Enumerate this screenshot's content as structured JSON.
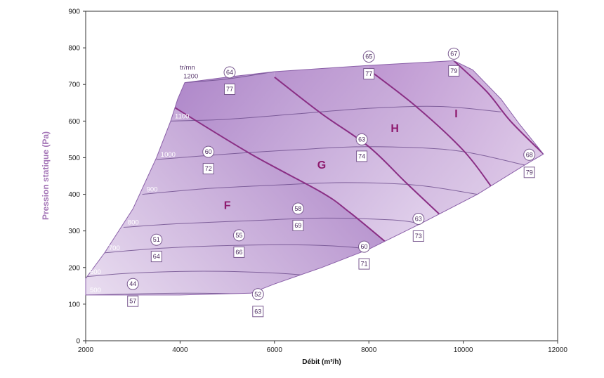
{
  "chart_data": {
    "type": "area",
    "xlabel": "Débit (m³/h)",
    "ylabel": "Pression statique (Pa)",
    "xlim": [
      2000,
      12000
    ],
    "ylim": [
      0,
      900
    ],
    "xticks": [
      "2000",
      "4000",
      "6000",
      "8000",
      "10000",
      "12000"
    ],
    "yticks": [
      "0",
      "100",
      "200",
      "300",
      "400",
      "500",
      "600",
      "700",
      "800",
      "900"
    ],
    "colors": {
      "axis_label": "#a272b5",
      "region_dark": "#9c6cbc",
      "region_light": "#f3ecf7",
      "curve": "#8a2f85",
      "isoline": "#6a4a8a"
    },
    "speed_unit": "tr/mn",
    "envelope": [
      [
        2000,
        170
      ],
      [
        2400,
        240
      ],
      [
        3000,
        360
      ],
      [
        3500,
        500
      ],
      [
        3800,
        600
      ],
      [
        3950,
        660
      ],
      [
        4100,
        705
      ],
      [
        5000,
        720
      ],
      [
        6000,
        735
      ],
      [
        8000,
        752
      ],
      [
        9800,
        765
      ],
      [
        10200,
        740
      ],
      [
        10800,
        660
      ],
      [
        11200,
        590
      ],
      [
        11700,
        510
      ],
      [
        11300,
        480
      ],
      [
        10300,
        400
      ],
      [
        9100,
        320
      ],
      [
        8000,
        250
      ],
      [
        7000,
        200
      ],
      [
        6000,
        155
      ],
      [
        5500,
        130
      ],
      [
        4000,
        125
      ],
      [
        2000,
        125
      ],
      [
        2000,
        170
      ]
    ],
    "speed_curves": [
      {
        "label": "500",
        "points": [
          [
            2000,
            125
          ],
          [
            4000,
            130
          ],
          [
            5500,
            128
          ]
        ]
      },
      {
        "label": "600",
        "points": [
          [
            2000,
            175
          ],
          [
            3000,
            185
          ],
          [
            4500,
            190
          ],
          [
            6000,
            185
          ],
          [
            7000,
            175
          ]
        ]
      },
      {
        "label": "700",
        "points": [
          [
            2400,
            240
          ],
          [
            3500,
            252
          ],
          [
            5000,
            260
          ],
          [
            6500,
            262
          ],
          [
            7500,
            257
          ],
          [
            8000,
            250
          ]
        ]
      },
      {
        "label": "800",
        "points": [
          [
            2800,
            310
          ],
          [
            4000,
            320
          ],
          [
            5500,
            328
          ],
          [
            7000,
            335
          ],
          [
            8500,
            330
          ],
          [
            9100,
            320
          ]
        ]
      },
      {
        "label": "900",
        "points": [
          [
            3200,
            400
          ],
          [
            4500,
            415
          ],
          [
            6000,
            425
          ],
          [
            7500,
            432
          ],
          [
            9000,
            425
          ],
          [
            10300,
            400
          ]
        ]
      },
      {
        "label": "1000",
        "points": [
          [
            3500,
            495
          ],
          [
            5000,
            510
          ],
          [
            6500,
            522
          ],
          [
            8000,
            530
          ],
          [
            9800,
            520
          ],
          [
            11300,
            480
          ]
        ]
      },
      {
        "label": "1100",
        "points": [
          [
            3800,
            600
          ],
          [
            5000,
            605
          ],
          [
            6500,
            620
          ],
          [
            8000,
            635
          ],
          [
            9500,
            640
          ],
          [
            10800,
            625
          ]
        ]
      },
      {
        "label": "1200",
        "points": [
          [
            4100,
            705
          ],
          [
            5000,
            715
          ],
          [
            6000,
            735
          ]
        ]
      }
    ],
    "zone_boundaries": [
      {
        "points": [
          [
            3850,
            640
          ],
          [
            5500,
            510
          ],
          [
            7000,
            405
          ],
          [
            7600,
            350
          ],
          [
            8400,
            265
          ]
        ]
      },
      {
        "points": [
          [
            6000,
            720
          ],
          [
            7000,
            620
          ],
          [
            8000,
            530
          ],
          [
            8800,
            430
          ],
          [
            9500,
            345
          ]
        ]
      },
      {
        "points": [
          [
            8000,
            740
          ],
          [
            9000,
            640
          ],
          [
            10000,
            520
          ],
          [
            10600,
            420
          ]
        ]
      },
      {
        "points": [
          [
            9800,
            765
          ],
          [
            10500,
            680
          ],
          [
            11000,
            600
          ],
          [
            11700,
            510
          ]
        ]
      }
    ],
    "zones": [
      {
        "label": "F",
        "x": 5000,
        "y": 360
      },
      {
        "label": "G",
        "x": 7000,
        "y": 470
      },
      {
        "label": "H",
        "x": 8550,
        "y": 570
      },
      {
        "label": "I",
        "x": 9850,
        "y": 610
      }
    ],
    "circle_markers": [
      {
        "label": "64",
        "x": 5050,
        "y": 733
      },
      {
        "label": "65",
        "x": 8000,
        "y": 776
      },
      {
        "label": "67",
        "x": 9800,
        "y": 784
      },
      {
        "label": "63",
        "x": 7850,
        "y": 550
      },
      {
        "label": "60",
        "x": 4600,
        "y": 516
      },
      {
        "label": "68",
        "x": 11400,
        "y": 508
      },
      {
        "label": "58",
        "x": 6500,
        "y": 361
      },
      {
        "label": "63",
        "x": 9050,
        "y": 333
      },
      {
        "label": "51",
        "x": 3500,
        "y": 276
      },
      {
        "label": "55",
        "x": 5250,
        "y": 288
      },
      {
        "label": "60",
        "x": 7900,
        "y": 257
      },
      {
        "label": "44",
        "x": 3000,
        "y": 155
      },
      {
        "label": "52",
        "x": 5650,
        "y": 127
      }
    ],
    "square_markers": [
      {
        "label": "77",
        "x": 5050,
        "y": 687
      },
      {
        "label": "77",
        "x": 8000,
        "y": 729
      },
      {
        "label": "79",
        "x": 9800,
        "y": 737
      },
      {
        "label": "74",
        "x": 7850,
        "y": 504
      },
      {
        "label": "72",
        "x": 4600,
        "y": 470
      },
      {
        "label": "79",
        "x": 11400,
        "y": 460
      },
      {
        "label": "69",
        "x": 6500,
        "y": 315
      },
      {
        "label": "73",
        "x": 9050,
        "y": 286
      },
      {
        "label": "64",
        "x": 3500,
        "y": 230
      },
      {
        "label": "66",
        "x": 5250,
        "y": 242
      },
      {
        "label": "71",
        "x": 7900,
        "y": 210
      },
      {
        "label": "57",
        "x": 3000,
        "y": 108
      },
      {
        "label": "63",
        "x": 5650,
        "y": 80
      }
    ]
  }
}
